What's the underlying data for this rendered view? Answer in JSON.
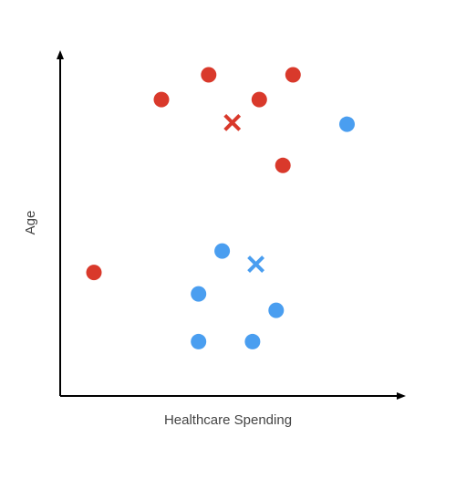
{
  "chart_data": {
    "type": "scatter",
    "title": "",
    "xlabel": "Healthcare Spending",
    "ylabel": "Age",
    "xlim": [
      0,
      10
    ],
    "ylim": [
      0,
      10
    ],
    "grid": false,
    "ticks": false,
    "colors": {
      "red": "#d9392b",
      "blue": "#4a9ef0"
    },
    "series": [
      {
        "color": "red",
        "points": [
          [
            1.0,
            3.75
          ],
          [
            3.0,
            9.0
          ],
          [
            4.4,
            9.75
          ],
          [
            5.9,
            9.0
          ],
          [
            6.6,
            7.0
          ],
          [
            6.9,
            9.75
          ]
        ]
      },
      {
        "color": "blue",
        "points": [
          [
            4.1,
            3.1
          ],
          [
            4.8,
            4.4
          ],
          [
            5.7,
            1.65
          ],
          [
            6.4,
            2.6
          ],
          [
            8.5,
            8.25
          ],
          [
            4.1,
            1.65
          ]
        ]
      }
    ],
    "centroids": [
      {
        "color": "red",
        "x": 5.1,
        "y": 8.3
      },
      {
        "color": "blue",
        "x": 5.8,
        "y": 4.0
      }
    ]
  }
}
